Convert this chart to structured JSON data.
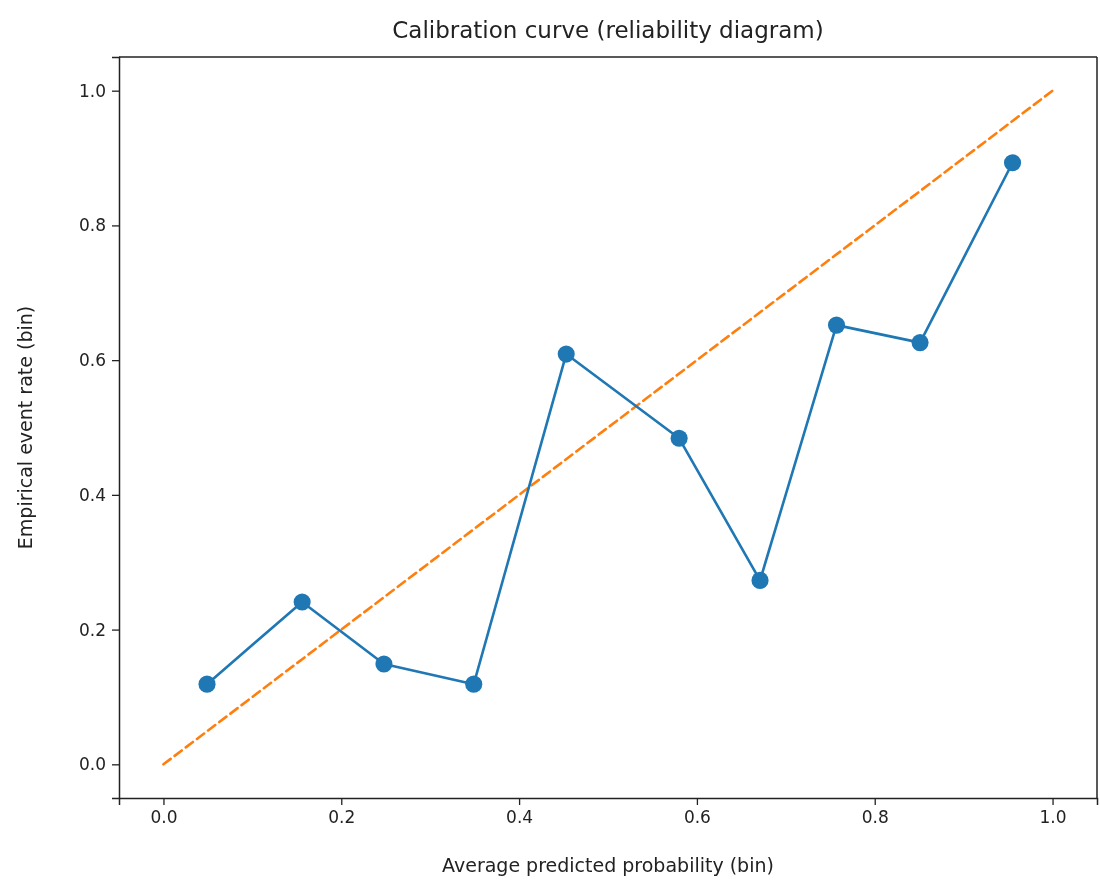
{
  "chart_data": {
    "type": "line",
    "title": "Calibration curve (reliability diagram)",
    "xlabel": "Average predicted probability (bin)",
    "ylabel": "Empirical event rate (bin)",
    "xlim": [
      -0.05,
      1.05
    ],
    "ylim": [
      -0.05,
      1.05
    ],
    "xticks": [
      {
        "value": 0,
        "label": "0.0"
      },
      {
        "value": 0.2,
        "label": "0.2"
      },
      {
        "value": 0.4,
        "label": "0.4"
      },
      {
        "value": 0.6,
        "label": "0.6"
      },
      {
        "value": 0.8,
        "label": "0.8"
      },
      {
        "value": 1,
        "label": "1.0"
      }
    ],
    "yticks": [
      {
        "value": 0,
        "label": "0.0"
      },
      {
        "value": 0.2,
        "label": "0.2"
      },
      {
        "value": 0.4,
        "label": "0.4"
      },
      {
        "value": 0.6,
        "label": "0.6"
      },
      {
        "value": 0.8,
        "label": "0.8"
      },
      {
        "value": 1,
        "label": "1.0"
      }
    ],
    "grid": false,
    "series": [
      {
        "color": "#1f77b4",
        "marker": "circle",
        "line_style": "solid",
        "x": [
          0.049,
          0.156,
          0.248,
          0.349,
          0.453,
          0.58,
          0.671,
          0.757,
          0.851,
          0.955
        ],
        "values": [
          0.119,
          0.241,
          0.149,
          0.119,
          0.609,
          0.484,
          0.273,
          0.652,
          0.626,
          0.893
        ]
      },
      {
        "color": "#ff7f0e",
        "marker": "none",
        "line_style": "dashed",
        "x": [
          0,
          1
        ],
        "values": [
          0,
          1
        ]
      }
    ]
  }
}
